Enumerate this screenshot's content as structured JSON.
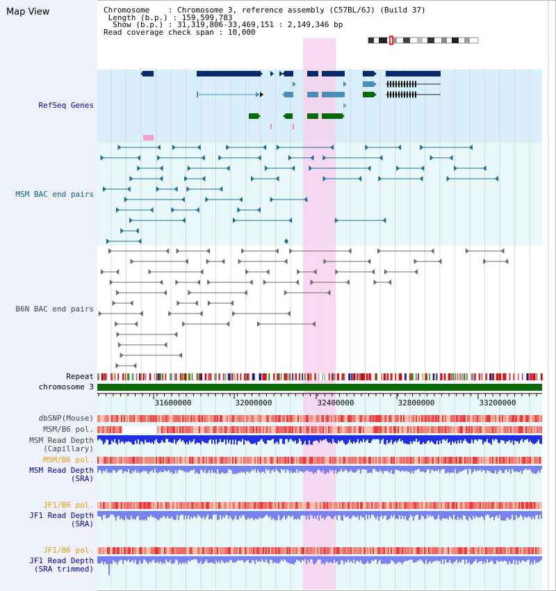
{
  "app": {
    "title": "Map View"
  },
  "info": {
    "chromosome_label": "Chromosome",
    "chromosome_value": "Chromosome 3, reference assembly (C57BL/6J) (Build 37)",
    "length_label": "Length (b.p.)",
    "length_value": "159,599,783",
    "show_label": "Show (b.p.)",
    "show_value": "31,319,806-33,469,151 : 2,149,346 bp",
    "coverage_label": "Read coverage check span",
    "coverage_value": "10,000"
  },
  "tracks": {
    "refseq": "RefSeq Genes",
    "msm_bac": "MSM BAC end pairs",
    "b6n_bac": "B6N BAC end pairs",
    "repeat": "Repeat",
    "chromosome": "chromosome 3",
    "dbsnp": "dbSNP(Mouse)",
    "msm_b6_pol_1": "MSM/B6 pol.",
    "msm_depth_cap": "MSM Read Depth\n(Capillary)",
    "msm_b6_pol_2": "MSM/B6 pol.",
    "msm_depth_sra": "MSM Read Depth\n(SRA)",
    "jf1_b6_pol_1": "JF1/B6 pol.",
    "jf1_depth_sra": "JF1 Read Depth\n(SRA)",
    "jf1_b6_pol_2": "JF1/B6 pol.",
    "jf1_depth_trim": "JF1 Read Depth\n(SRA trimmed)"
  },
  "axis": {
    "ticks": [
      "31600000",
      "32000000",
      "32400000",
      "32800000",
      "33200000"
    ]
  },
  "colors": {
    "refseq_bg": "#d8eefa",
    "bac_bg": "#e8f8fa",
    "highlight": "#f7d2ef",
    "gene_dark": "#0a2a66",
    "gene_mid": "#4a8fb8",
    "gene_green": "#0a6a0a",
    "bac_teal": "#1a6f8e",
    "bac_gray": "#6a6a6a",
    "chrom_green": "#0a6a0a",
    "depth_blue": "#2030e0",
    "depth_light": "#7a80f0"
  }
}
